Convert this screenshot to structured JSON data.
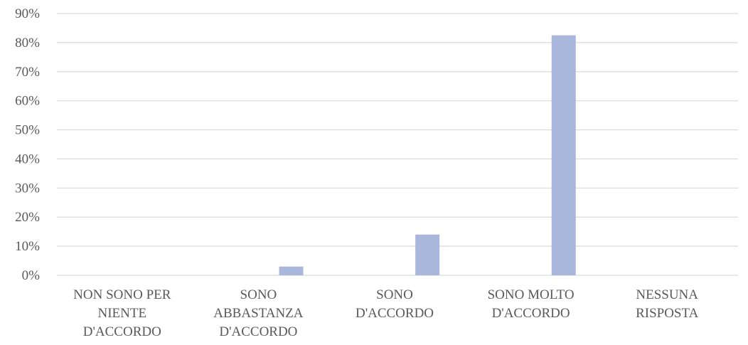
{
  "chart_data": {
    "type": "bar",
    "categories": [
      [
        "NON SONO PER",
        "NIENTE",
        "D'ACCORDO"
      ],
      [
        "SONO",
        "ABBASTANZA",
        "D'ACCORDO"
      ],
      [
        "SONO",
        "D'ACCORDO"
      ],
      [
        "SONO MOLTO",
        "D'ACCORDO"
      ],
      [
        "NESSUNA",
        "RISPOSTA"
      ]
    ],
    "values": [
      0,
      3,
      14,
      82.5,
      0
    ],
    "ylim": [
      0,
      90
    ],
    "y_ticks": [
      0,
      10,
      20,
      30,
      40,
      50,
      60,
      70,
      80,
      90
    ],
    "y_tick_labels": [
      "0%",
      "10%",
      "20%",
      "30%",
      "40%",
      "50%",
      "60%",
      "70%",
      "80%",
      "90%"
    ],
    "grid": true,
    "legend": "none",
    "bar_color": "#a9b7dc",
    "grid_color": "#d9d9d9"
  }
}
